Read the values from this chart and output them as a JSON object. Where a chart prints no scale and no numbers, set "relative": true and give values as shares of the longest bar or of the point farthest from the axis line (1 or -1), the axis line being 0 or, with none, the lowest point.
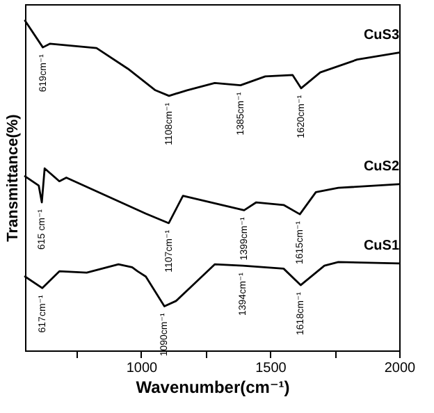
{
  "chart_data": {
    "type": "line",
    "relative": true,
    "xlabel": "Wavenumber(cm⁻¹)",
    "ylabel": "Transmittance(%)",
    "xlim": [
      550,
      2000
    ],
    "xticks": [
      {
        "value": 750,
        "label": null
      },
      1000,
      {
        "value": 1250,
        "label": null
      },
      1500,
      {
        "value": 1750,
        "label": null
      },
      2000
    ],
    "tick_labels": "x",
    "grid": false,
    "legend": false,
    "marker": "none",
    "line_style": "solid",
    "series": [
      {
        "name": "CuS3",
        "color": "#000000",
        "x": [
          550,
          619,
          646,
          827,
          949,
          1055,
          1108,
          1178,
          1285,
          1385,
          1481,
          1587,
          1620,
          1694,
          1837,
          2000
        ],
        "values": [
          1.0,
          0.919,
          0.93,
          0.917,
          0.854,
          0.789,
          0.772,
          0.789,
          0.811,
          0.804,
          0.831,
          0.835,
          0.795,
          0.843,
          0.882,
          0.903
        ]
      },
      {
        "name": "CuS2",
        "color": "#000000",
        "x": [
          550,
          603,
          615,
          626,
          683,
          710,
          1018,
          1107,
          1162,
          1399,
          1446,
          1552,
          1615,
          1677,
          1764,
          2000
        ],
        "values": [
          0.528,
          0.5,
          0.449,
          0.552,
          0.513,
          0.524,
          0.415,
          0.386,
          0.469,
          0.425,
          0.449,
          0.441,
          0.413,
          0.48,
          0.493,
          0.504
        ]
      },
      {
        "name": "CuS1",
        "color": "#000000",
        "x": [
          550,
          617,
          683,
          789,
          912,
          965,
          986,
          1018,
          1090,
          1135,
          1199,
          1285,
          1394,
          1552,
          1618,
          1710,
          1764,
          2000
        ],
        "values": [
          0.224,
          0.189,
          0.24,
          0.236,
          0.261,
          0.252,
          0.24,
          0.224,
          0.134,
          0.15,
          0.197,
          0.261,
          0.257,
          0.248,
          0.198,
          0.257,
          0.268,
          0.264
        ]
      }
    ],
    "annotations": [
      {
        "text": "619cm⁻¹",
        "x": 619,
        "y": 0.919
      },
      {
        "text": "1108cm⁻¹",
        "x": 1108,
        "y": 0.772
      },
      {
        "text": "1385cm⁻¹",
        "x": 1385,
        "y": 0.804
      },
      {
        "text": "1620cm⁻¹",
        "x": 1620,
        "y": 0.795
      },
      {
        "text": "615 cm⁻¹",
        "x": 615,
        "y": 0.449
      },
      {
        "text": "1107cm⁻¹",
        "x": 1107,
        "y": 0.386
      },
      {
        "text": "1399cm⁻¹",
        "x": 1399,
        "y": 0.425
      },
      {
        "text": "1615cm⁻¹",
        "x": 1615,
        "y": 0.413
      },
      {
        "text": "617cm⁻¹",
        "x": 617,
        "y": 0.189
      },
      {
        "text": "1090cm⁻¹",
        "x": 1090,
        "y": 0.134
      },
      {
        "text": "1394cm⁻¹",
        "x": 1394,
        "y": 0.257
      },
      {
        "text": "1618cm⁻¹",
        "x": 1618,
        "y": 0.198
      }
    ]
  }
}
